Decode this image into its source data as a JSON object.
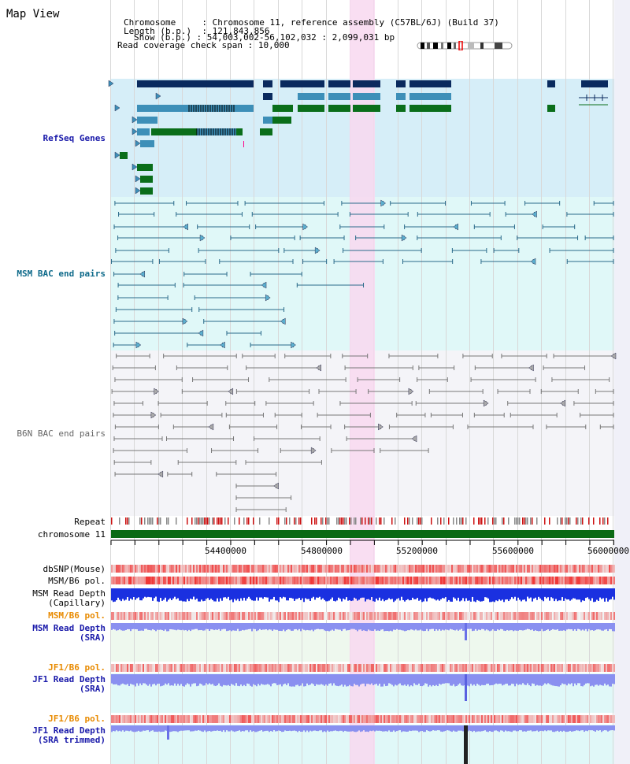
{
  "page": {
    "title": "Map View",
    "info": {
      "chromosome_key": "Chromosome",
      "chromosome_value": "Chromosome 11, reference assembly (C57BL/6J) (Build 37)",
      "length_key": "Length (b.p.)",
      "length_value": "121,843,856",
      "show_key": "Show (b.p.)",
      "show_value": "54,003,002-56,102,032 : 2,099,031 bp",
      "coverage_key": "Read coverage check span",
      "coverage_value": "10,000"
    }
  },
  "tracks": {
    "refseq": "RefSeq Genes",
    "msm_bac": "MSM BAC end pairs",
    "b6n_bac": "B6N BAC end pairs",
    "repeat": "Repeat",
    "chromosome": "chromosome 11",
    "dbsnp": "dbSNP(Mouse)",
    "msm_b6_pol": "MSM/B6 pol.",
    "msm_read_depth_cap": "MSM Read Depth",
    "msm_read_depth_cap_sub": "(Capillary)",
    "msm_b6_pol2": "MSM/B6 pol.",
    "msm_read_depth_sra": "MSM Read Depth",
    "msm_read_depth_sra_sub": "(SRA)",
    "jf1_b6_pol": "JF1/B6 pol.",
    "jf1_read_depth": "JF1 Read Depth",
    "jf1_read_depth_sub": "(SRA)",
    "jf1_b6_pol2": "JF1/B6 pol.",
    "jf1_read_depth_trim": "JF1 Read Depth",
    "jf1_read_depth_trim_sub": "(SRA trimmed)"
  },
  "axis": {
    "ticks": [
      "54400000",
      "54800000",
      "55200000",
      "55600000",
      "56000000"
    ]
  },
  "colors": {
    "refseq_bg": "#d6eef8",
    "bac_bg": "#e0f8f8",
    "b6n_bg": "#f4f4f8",
    "highlight": "#f8d8f0",
    "gene_dark": "#0a2a5e",
    "gene_mid": "#3d8fb8",
    "gene_green": "#0a6e1a",
    "bac_line": "#2a6a8a",
    "b6n_line": "#777777",
    "chrom_bar": "#0a6a14",
    "label_blue": "#1a1aaa",
    "label_orange": "#e88a00",
    "label_teal": "#0e6a8a"
  }
}
